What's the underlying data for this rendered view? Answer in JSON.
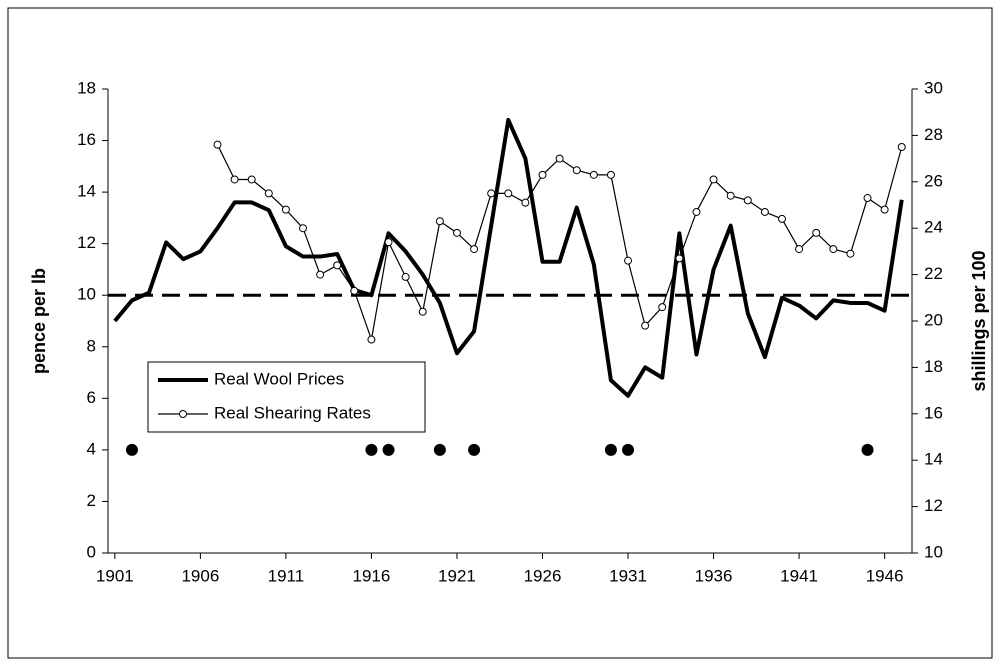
{
  "chart_data": {
    "type": "line",
    "y_label": "pence per lb",
    "y2_label": "shillings per 100",
    "x": [
      1901,
      1902,
      1903,
      1904,
      1905,
      1906,
      1907,
      1908,
      1909,
      1910,
      1911,
      1912,
      1913,
      1914,
      1915,
      1916,
      1917,
      1918,
      1919,
      1920,
      1921,
      1922,
      1923,
      1924,
      1925,
      1926,
      1927,
      1928,
      1929,
      1930,
      1931,
      1932,
      1933,
      1934,
      1935,
      1936,
      1937,
      1938,
      1939,
      1940,
      1941,
      1942,
      1943,
      1944,
      1945,
      1946,
      1947
    ],
    "series": [
      {
        "name": "Real Wool Prices",
        "color": "#000000",
        "axis": "y",
        "marker": false,
        "values": [
          9.0,
          9.8,
          10.1,
          12.05,
          11.4,
          11.7,
          12.6,
          13.6,
          13.6,
          13.3,
          11.9,
          11.5,
          11.5,
          11.6,
          10.2,
          10.0,
          12.4,
          11.7,
          10.8,
          9.7,
          7.75,
          8.6,
          12.7,
          16.8,
          15.3,
          11.3,
          11.3,
          13.4,
          11.2,
          6.7,
          6.1,
          7.2,
          6.8,
          12.4,
          7.7,
          11.0,
          12.7,
          9.3,
          7.6,
          9.9,
          9.6,
          9.1,
          9.8,
          9.7,
          9.7,
          9.4,
          13.7
        ]
      },
      {
        "name": "Real Shearing Rates",
        "color": "#000000",
        "axis": "y2",
        "marker": true,
        "values": [
          null,
          null,
          null,
          null,
          null,
          null,
          27.6,
          26.1,
          26.1,
          25.5,
          24.8,
          24.0,
          22.0,
          22.4,
          21.3,
          19.2,
          23.4,
          21.9,
          20.4,
          24.3,
          23.8,
          23.1,
          25.5,
          25.5,
          25.1,
          26.3,
          27.0,
          26.5,
          26.3,
          26.3,
          22.6,
          19.8,
          20.6,
          22.7,
          24.7,
          26.1,
          25.4,
          25.2,
          24.7,
          24.4,
          23.1,
          23.8,
          23.1,
          22.9,
          25.3,
          24.8,
          27.5
        ]
      }
    ],
    "dots": {
      "x": [
        1902,
        1916,
        1917,
        1920,
        1922,
        1930,
        1931,
        1945
      ],
      "values": [
        4,
        4,
        4,
        4,
        4,
        4,
        4,
        4
      ]
    },
    "hline": 10,
    "xlim": [
      1900.6,
      1947.6
    ],
    "xticks": [
      1901,
      1906,
      1911,
      1916,
      1921,
      1926,
      1931,
      1936,
      1941,
      1946
    ],
    "ylim": [
      0,
      18
    ],
    "yticks": [
      0,
      2,
      4,
      6,
      8,
      10,
      12,
      14,
      16,
      18
    ],
    "y2lim": [
      10,
      30
    ],
    "y2ticks": [
      10,
      12,
      14,
      16,
      18,
      20,
      22,
      24,
      26,
      28,
      30
    ],
    "legend": "left"
  }
}
